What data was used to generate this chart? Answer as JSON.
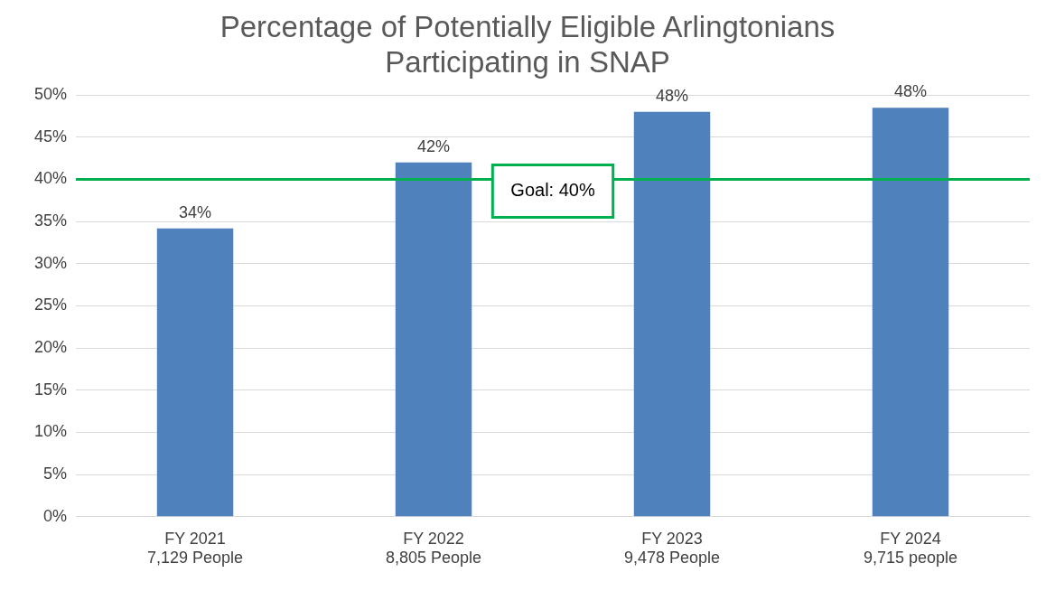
{
  "chart_data": {
    "type": "bar",
    "title": "Percentage of Potentially Eligible Arlingtonians Participating in SNAP",
    "categories": [
      "FY 2021\n7,129 People",
      "FY 2022\n8,805 People",
      "FY 2023\n9,478 People",
      "FY 2024\n9,715 people"
    ],
    "values": [
      34.2,
      42,
      48,
      48.5
    ],
    "value_labels": [
      "34%",
      "42%",
      "48%",
      "48%"
    ],
    "color": "#4f81bd",
    "ylim": [
      0,
      50
    ],
    "yticks": [
      {
        "value": 0,
        "label": "0%"
      },
      {
        "value": 5,
        "label": "5%"
      },
      {
        "value": 10,
        "label": "10%"
      },
      {
        "value": 15,
        "label": "15%"
      },
      {
        "value": 20,
        "label": "20%"
      },
      {
        "value": 25,
        "label": "25%"
      },
      {
        "value": 30,
        "label": "30%"
      },
      {
        "value": 35,
        "label": "35%"
      },
      {
        "value": 40,
        "label": "40%"
      },
      {
        "value": 45,
        "label": "45%"
      },
      {
        "value": 50,
        "label": "50%"
      }
    ],
    "grid": "y",
    "legend": false,
    "ref_lines": [
      {
        "axis": "y",
        "value": 40,
        "label": "Goal: 40%",
        "color": "#00b050"
      }
    ]
  }
}
